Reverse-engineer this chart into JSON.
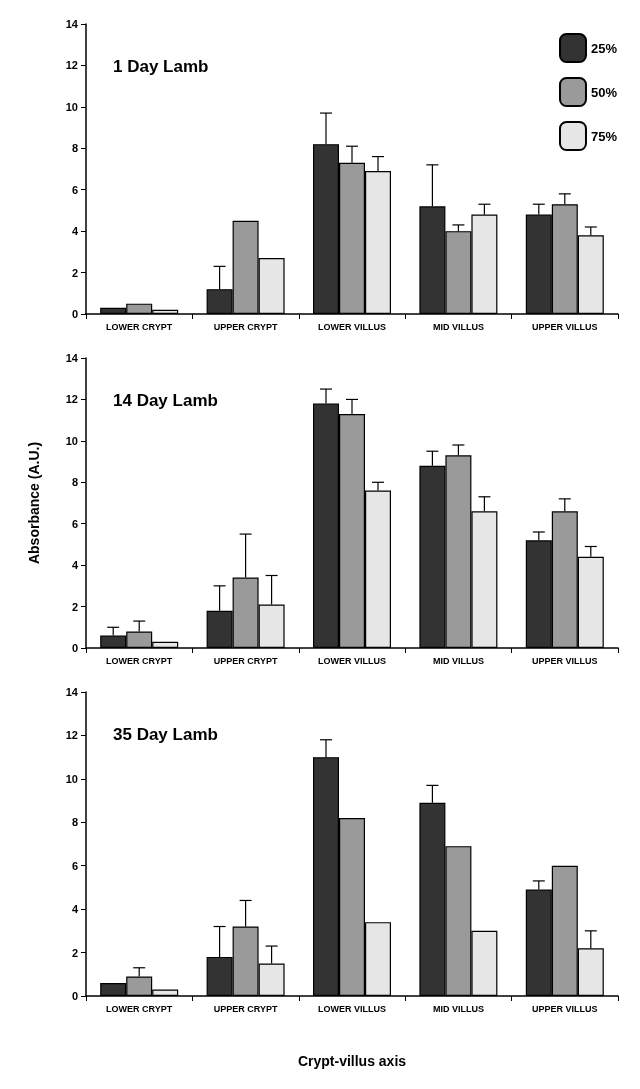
{
  "chart_data": [
    {
      "type": "bar",
      "title": "1 Day Lamb",
      "categories": [
        "LOWER CRYPT",
        "UPPER CRYPT",
        "LOWER VILLUS",
        "MID VILLUS",
        "UPPER VILLUS"
      ],
      "ylim": [
        0,
        14
      ],
      "yticks": [
        0,
        2,
        4,
        6,
        8,
        10,
        12,
        14
      ],
      "grid": false,
      "legend": "top right",
      "series": [
        {
          "name": "25%",
          "color": "#333333",
          "values": [
            0.3,
            1.2,
            8.2,
            5.2,
            4.8
          ],
          "errors": [
            null,
            [
              1.2,
              2.3
            ],
            [
              8.2,
              9.7
            ],
            [
              5.2,
              7.2
            ],
            [
              4.8,
              5.3
            ]
          ]
        },
        {
          "name": "50%",
          "color": "#9a9a9a",
          "values": [
            0.5,
            4.5,
            7.3,
            4.0,
            5.3
          ],
          "errors": [
            null,
            null,
            [
              7.3,
              8.1
            ],
            [
              4.0,
              4.3
            ],
            [
              5.3,
              5.8
            ]
          ]
        },
        {
          "name": "75%",
          "color": "#e6e6e6",
          "values": [
            0.2,
            2.7,
            6.9,
            4.8,
            3.8
          ],
          "errors": [
            null,
            null,
            [
              6.9,
              7.6
            ],
            [
              4.8,
              5.3
            ],
            [
              3.8,
              4.2
            ]
          ]
        }
      ]
    },
    {
      "type": "bar",
      "title": "14 Day Lamb",
      "ylabel": "Absorbance (A.U.)",
      "categories": [
        "LOWER CRYPT",
        "UPPER CRYPT",
        "LOWER VILLUS",
        "MID VILLUS",
        "UPPER VILLUS"
      ],
      "ylim": [
        0,
        14
      ],
      "yticks": [
        0,
        2,
        4,
        6,
        8,
        10,
        12,
        14
      ],
      "grid": false,
      "series": [
        {
          "color": "#333333",
          "values": [
            0.6,
            1.8,
            11.8,
            8.8,
            5.2
          ],
          "errors": [
            [
              0.6,
              1.0
            ],
            [
              1.8,
              3.0
            ],
            [
              11.8,
              12.5
            ],
            [
              8.8,
              9.5
            ],
            [
              5.2,
              5.6
            ]
          ]
        },
        {
          "color": "#9a9a9a",
          "values": [
            0.8,
            3.4,
            11.3,
            9.3,
            6.6
          ],
          "errors": [
            [
              0.8,
              1.3
            ],
            [
              3.4,
              5.5
            ],
            [
              11.3,
              12.0
            ],
            [
              9.3,
              9.8
            ],
            [
              6.6,
              7.2
            ]
          ]
        },
        {
          "color": "#e6e6e6",
          "values": [
            0.3,
            2.1,
            7.6,
            6.6,
            4.4
          ],
          "errors": [
            null,
            [
              2.1,
              3.5
            ],
            [
              7.6,
              8.0
            ],
            [
              6.6,
              7.3
            ],
            [
              4.4,
              4.9
            ]
          ]
        }
      ]
    },
    {
      "type": "bar",
      "title": "35 Day Lamb",
      "xlabel": "Crypt-villus axis",
      "categories": [
        "LOWER CRYPT",
        "UPPER CRYPT",
        "LOWER VILLUS",
        "MID VILLUS",
        "UPPER VILLUS"
      ],
      "ylim": [
        0,
        14
      ],
      "yticks": [
        0,
        2,
        4,
        6,
        8,
        10,
        12,
        14
      ],
      "grid": false,
      "series": [
        {
          "color": "#333333",
          "values": [
            0.6,
            1.8,
            11.0,
            8.9,
            4.9
          ],
          "errors": [
            null,
            [
              1.8,
              3.2
            ],
            [
              11.0,
              11.8
            ],
            [
              8.9,
              9.7
            ],
            [
              4.9,
              5.3
            ]
          ]
        },
        {
          "color": "#9a9a9a",
          "values": [
            0.9,
            3.2,
            8.2,
            6.9,
            6.0
          ],
          "errors": [
            [
              0.9,
              1.3
            ],
            [
              3.2,
              4.4
            ],
            null,
            null,
            null
          ]
        },
        {
          "color": "#e6e6e6",
          "values": [
            0.3,
            1.5,
            3.4,
            3.0,
            2.2
          ],
          "errors": [
            null,
            [
              1.5,
              2.3
            ],
            null,
            null,
            [
              2.2,
              3.0
            ]
          ]
        }
      ]
    }
  ]
}
